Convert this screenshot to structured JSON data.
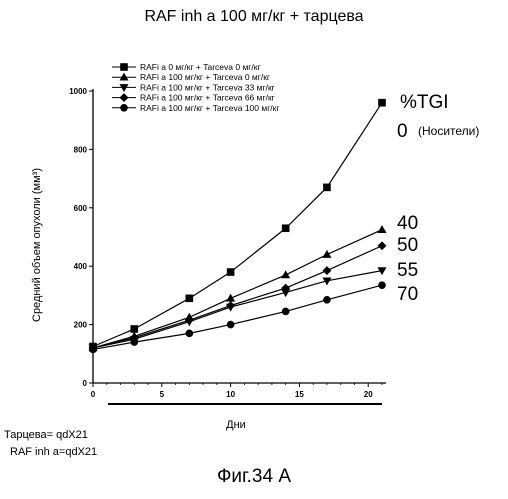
{
  "title": "RAF inh a 100 мг/кг + тарцева",
  "chart_data": {
    "type": "line",
    "xlabel": "Дни",
    "ylabel": "Средний объем опухоли (мм³)",
    "xlim": [
      0,
      21
    ],
    "ylim": [
      0,
      1000
    ],
    "x_ticks": [
      0,
      5,
      10,
      15,
      20
    ],
    "y_ticks": [
      0,
      200,
      400,
      600,
      800,
      1000
    ],
    "grid": false,
    "legend_position": "top-left",
    "series": [
      {
        "name": "RAFi a 0 мг/кг + Tarceva 0 мг/кг",
        "marker": "square",
        "x": [
          0,
          3,
          7,
          10,
          14,
          17,
          21
        ],
        "y": [
          125,
          185,
          290,
          380,
          530,
          670,
          960
        ],
        "tgi": "0"
      },
      {
        "name": "RAFi a 100 мг/кг + Tarceva 0 мг/кг",
        "marker": "triangle",
        "x": [
          0,
          3,
          7,
          10,
          14,
          17,
          21
        ],
        "y": [
          120,
          160,
          225,
          290,
          370,
          440,
          525
        ],
        "tgi": "40"
      },
      {
        "name": "RAFi a 100 мг/кг + Tarceva 33 мг/кг",
        "marker": "triangle-down",
        "x": [
          0,
          3,
          7,
          10,
          14,
          17,
          21
        ],
        "y": [
          120,
          150,
          210,
          260,
          310,
          350,
          385
        ],
        "tgi": "55"
      },
      {
        "name": "RAFi a 100 мг/кг + Tarceva 66 мг/кг",
        "marker": "diamond",
        "x": [
          0,
          3,
          7,
          10,
          14,
          17,
          21
        ],
        "y": [
          120,
          155,
          215,
          265,
          325,
          385,
          470
        ],
        "tgi": "50"
      },
      {
        "name": "RAFi a 100 мг/кг + Tarceva 100 мг/кг",
        "marker": "circle",
        "x": [
          0,
          3,
          7,
          10,
          14,
          17,
          21
        ],
        "y": [
          115,
          140,
          170,
          200,
          245,
          285,
          335
        ],
        "tgi": "70"
      }
    ],
    "tgi_header": "%TGI",
    "tgi_vehicle_note": "(Носители)"
  },
  "dosing_note": [
    "Тарцева= qdX21",
    "RAF inh a=qdX21"
  ],
  "figure_caption": "Фиг.34 А"
}
